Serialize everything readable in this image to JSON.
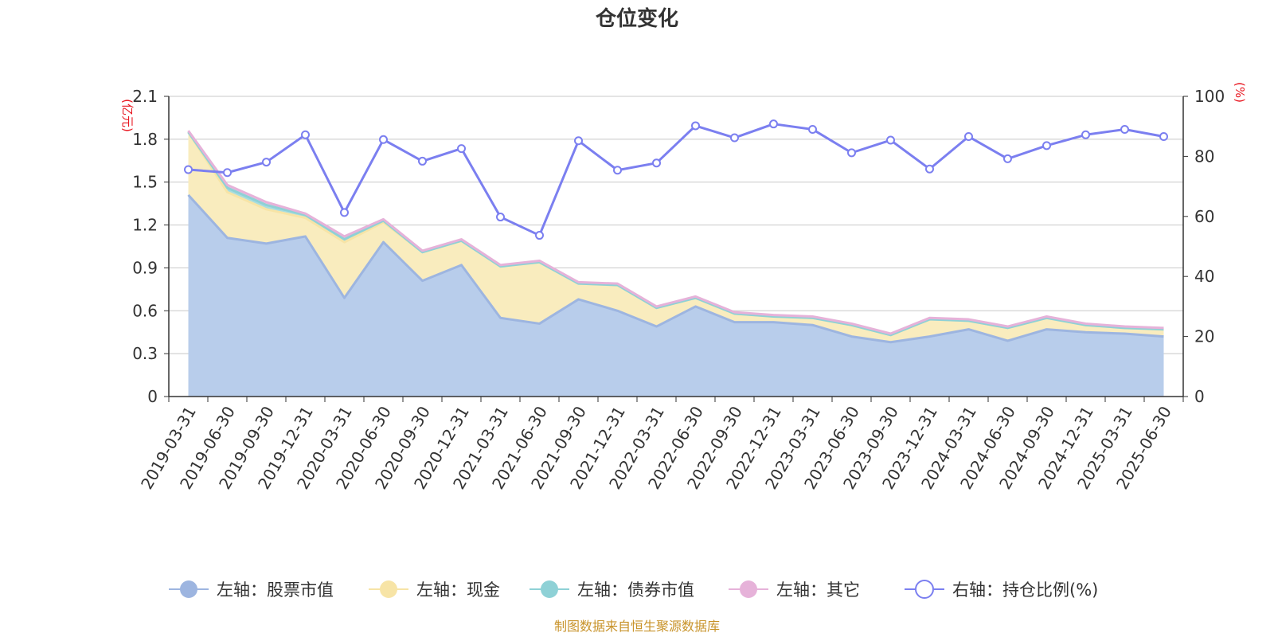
{
  "chart_data": {
    "type": "area",
    "title": "仓位变化",
    "categories": [
      "2019-03-31",
      "2019-06-30",
      "2019-09-30",
      "2019-12-31",
      "2020-03-31",
      "2020-06-30",
      "2020-09-30",
      "2020-12-31",
      "2021-03-31",
      "2021-06-30",
      "2021-09-30",
      "2021-12-31",
      "2022-03-31",
      "2022-06-30",
      "2022-09-30",
      "2022-12-31",
      "2023-03-31",
      "2023-06-30",
      "2023-09-30",
      "2023-12-31",
      "2024-03-31",
      "2024-06-30",
      "2024-09-30",
      "2024-12-31",
      "2025-03-31",
      "2025-06-30"
    ],
    "left_axis": {
      "unit": "(亿元)",
      "min": 0,
      "max": 2.1,
      "ticks": [
        "0",
        "0.3",
        "0.6",
        "0.9",
        "1.2",
        "1.5",
        "1.8",
        "2.1"
      ]
    },
    "right_axis": {
      "unit": "(%)",
      "min": 0,
      "max": 100,
      "ticks": [
        "0",
        "20",
        "40",
        "60",
        "80",
        "100"
      ]
    },
    "series": [
      {
        "name": "左轴：股票市值",
        "axis": "left",
        "kind": "stacked-area",
        "color": "#9db5e0",
        "fill": "#b8cdeb",
        "values": [
          1.41,
          1.11,
          1.07,
          1.12,
          0.69,
          1.08,
          0.81,
          0.92,
          0.55,
          0.51,
          0.68,
          0.6,
          0.49,
          0.63,
          0.52,
          0.52,
          0.5,
          0.42,
          0.38,
          0.42,
          0.47,
          0.39,
          0.47,
          0.45,
          0.44,
          0.42
        ]
      },
      {
        "name": "左轴：现金",
        "axis": "left",
        "kind": "stacked-area",
        "color": "#f7e4a6",
        "fill": "#f9ecbe",
        "values": [
          0.44,
          0.32,
          0.24,
          0.13,
          0.39,
          0.14,
          0.2,
          0.17,
          0.36,
          0.43,
          0.11,
          0.18,
          0.13,
          0.06,
          0.06,
          0.04,
          0.05,
          0.08,
          0.05,
          0.12,
          0.06,
          0.09,
          0.08,
          0.05,
          0.04,
          0.05
        ]
      },
      {
        "name": "左轴：债券市值",
        "axis": "left",
        "kind": "stacked-area",
        "color": "#8ed1d6",
        "fill": "#a8dde0",
        "values": [
          0.0,
          0.03,
          0.03,
          0.02,
          0.02,
          0.01,
          0.0,
          0.0,
          0.0,
          0.0,
          0.0,
          0.0,
          0.0,
          0.0,
          0.0,
          0.0,
          0.0,
          0.0,
          0.0,
          0.0,
          0.0,
          0.0,
          0.0,
          0.0,
          0.0,
          0.0
        ]
      },
      {
        "name": "左轴：其它",
        "axis": "left",
        "kind": "stacked-area",
        "color": "#e6b2d9",
        "fill": "#ecc4e3",
        "values": [
          0.01,
          0.02,
          0.02,
          0.01,
          0.02,
          0.01,
          0.01,
          0.01,
          0.01,
          0.01,
          0.01,
          0.01,
          0.01,
          0.01,
          0.01,
          0.01,
          0.01,
          0.01,
          0.01,
          0.01,
          0.01,
          0.01,
          0.01,
          0.01,
          0.01,
          0.01
        ]
      },
      {
        "name": "右轴：持仓比例(%)",
        "axis": "right",
        "kind": "line",
        "color": "#7b7ff0",
        "values": [
          75.6,
          74.6,
          78.1,
          87.2,
          61.3,
          85.6,
          78.4,
          82.6,
          59.8,
          53.7,
          85.2,
          75.4,
          77.8,
          90.2,
          86.2,
          90.8,
          89.0,
          81.2,
          85.4,
          75.8,
          86.6,
          79.2,
          83.6,
          87.2,
          89.0,
          86.6
        ]
      }
    ],
    "grid": true,
    "legend_position": "bottom",
    "footer": "制图数据来自恒生聚源数据库"
  }
}
